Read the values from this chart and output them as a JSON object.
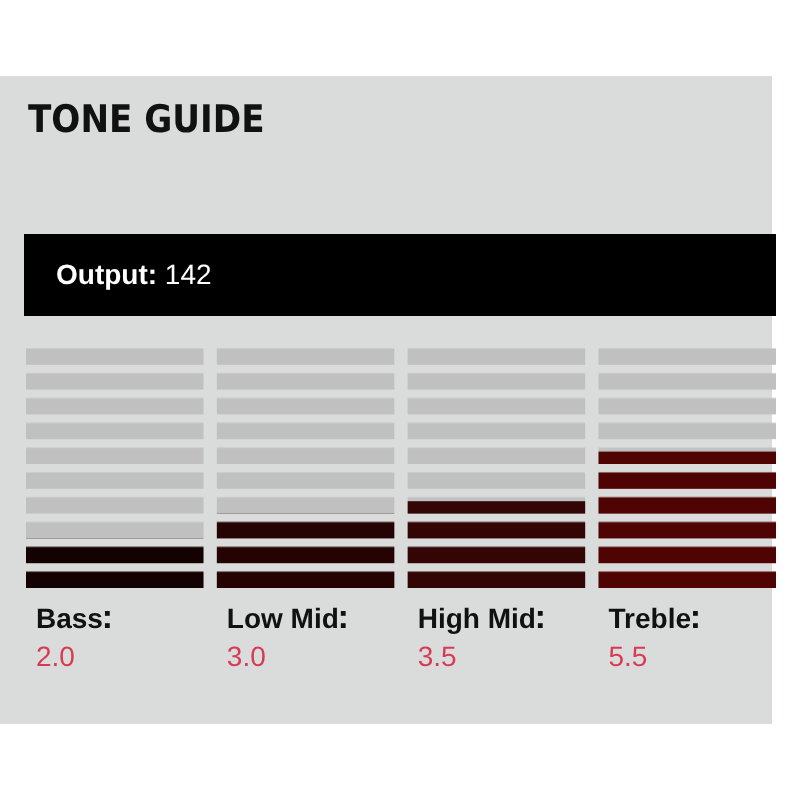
{
  "chart_data": {
    "type": "bar",
    "title": "TONE GUIDE",
    "annotations": [
      "Output: 142"
    ],
    "categories": [
      "Bass",
      "Low Mid",
      "High Mid",
      "Treble"
    ],
    "values": [
      2.0,
      3.0,
      3.5,
      5.5
    ],
    "value_labels": [
      "2.0",
      "3.0",
      "3.5",
      "5.5"
    ],
    "colors": [
      "#140202",
      "#260303",
      "#330505",
      "#500303"
    ],
    "ylim": [
      0,
      10
    ],
    "bands": [
      {
        "axis": "y",
        "from": 0,
        "to": 10,
        "color": "#c0c0c0"
      }
    ]
  }
}
